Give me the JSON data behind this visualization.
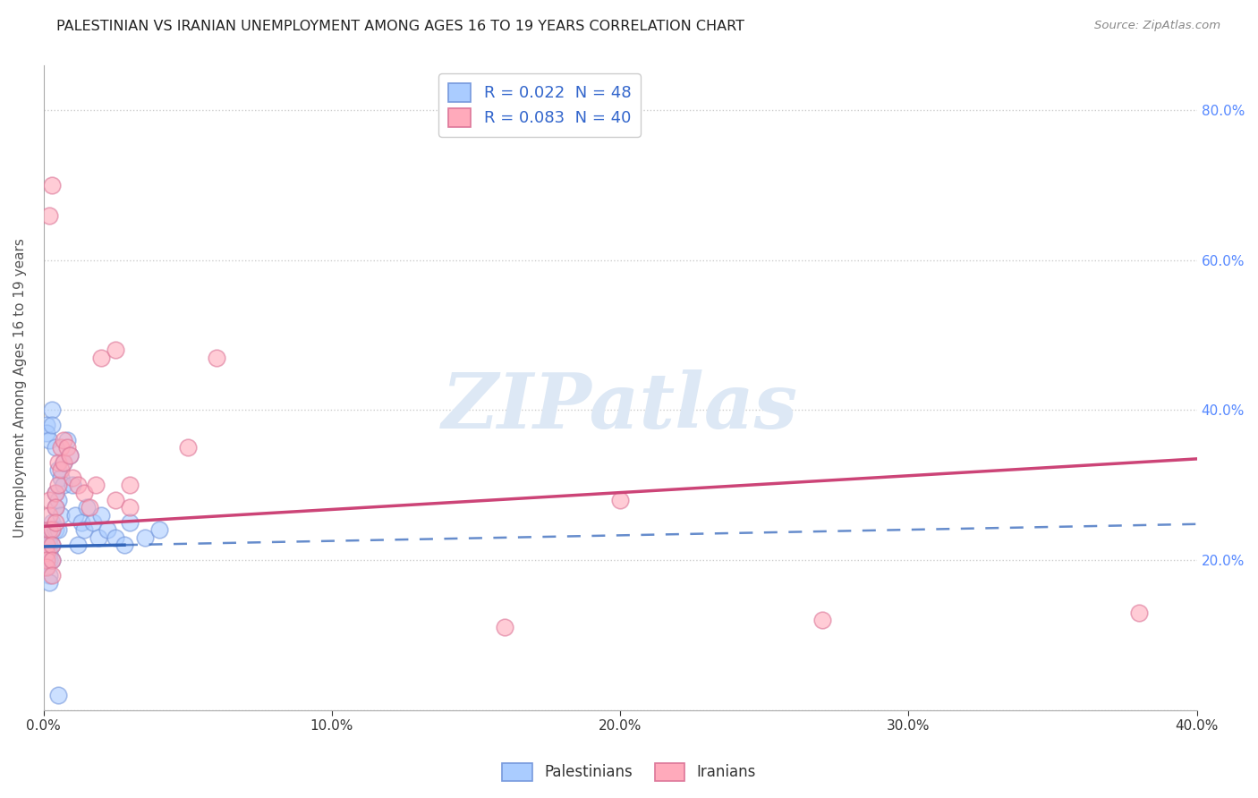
{
  "title": "PALESTINIAN VS IRANIAN UNEMPLOYMENT AMONG AGES 16 TO 19 YEARS CORRELATION CHART",
  "source": "Source: ZipAtlas.com",
  "ylabel": "Unemployment Among Ages 16 to 19 years",
  "xlim": [
    0.0,
    0.4
  ],
  "ylim": [
    0.0,
    0.86
  ],
  "xtick_vals": [
    0.0,
    0.1,
    0.2,
    0.3,
    0.4
  ],
  "xtick_labels": [
    "0.0%",
    "10.0%",
    "20.0%",
    "30.0%",
    "40.0%"
  ],
  "ytick_vals": [
    0.0,
    0.2,
    0.4,
    0.6,
    0.8
  ],
  "ytick_labels_right": [
    "",
    "20.0%",
    "40.0%",
    "60.0%",
    "80.0%"
  ],
  "legend_r1": "R = 0.022  N = 48",
  "legend_r2": "R = 0.083  N = 40",
  "legend_color1": "#aaccff",
  "legend_color2": "#ffaabb",
  "dot_face_palestinians": "#aaccff",
  "dot_edge_palestinians": "#7799dd",
  "dot_face_iranians": "#ffaabb",
  "dot_edge_iranians": "#dd7799",
  "trendline_color_palestinians": "#3366bb",
  "trendline_color_iranians": "#cc4477",
  "background_color": "#ffffff",
  "grid_color": "#cccccc",
  "title_color": "#222222",
  "axis_label_color": "#555555",
  "tick_color_right": "#5588ff",
  "watermark_color": "#dde8f5",
  "palestinians_x": [
    0.001,
    0.001,
    0.001,
    0.001,
    0.002,
    0.002,
    0.002,
    0.002,
    0.002,
    0.003,
    0.003,
    0.003,
    0.003,
    0.004,
    0.004,
    0.004,
    0.005,
    0.005,
    0.005,
    0.006,
    0.006,
    0.007,
    0.007,
    0.008,
    0.009,
    0.01,
    0.011,
    0.012,
    0.013,
    0.014,
    0.015,
    0.017,
    0.019,
    0.02,
    0.022,
    0.025,
    0.028,
    0.03,
    0.035,
    0.04,
    0.001,
    0.001,
    0.002,
    0.003,
    0.003,
    0.004,
    0.002,
    0.005
  ],
  "palestinians_y": [
    0.22,
    0.21,
    0.2,
    0.19,
    0.23,
    0.22,
    0.21,
    0.2,
    0.18,
    0.25,
    0.24,
    0.22,
    0.2,
    0.29,
    0.27,
    0.24,
    0.32,
    0.28,
    0.24,
    0.31,
    0.26,
    0.33,
    0.3,
    0.36,
    0.34,
    0.3,
    0.26,
    0.22,
    0.25,
    0.24,
    0.27,
    0.25,
    0.23,
    0.26,
    0.24,
    0.23,
    0.22,
    0.25,
    0.23,
    0.24,
    0.38,
    0.37,
    0.36,
    0.4,
    0.38,
    0.35,
    0.17,
    0.02
  ],
  "iranians_x": [
    0.001,
    0.001,
    0.001,
    0.001,
    0.002,
    0.002,
    0.002,
    0.003,
    0.003,
    0.003,
    0.003,
    0.004,
    0.004,
    0.004,
    0.005,
    0.005,
    0.006,
    0.006,
    0.007,
    0.007,
    0.008,
    0.009,
    0.01,
    0.012,
    0.014,
    0.016,
    0.018,
    0.02,
    0.025,
    0.03,
    0.002,
    0.003,
    0.16,
    0.27,
    0.38,
    0.2,
    0.025,
    0.03,
    0.05,
    0.06
  ],
  "iranians_y": [
    0.22,
    0.21,
    0.2,
    0.19,
    0.28,
    0.26,
    0.24,
    0.24,
    0.22,
    0.2,
    0.18,
    0.29,
    0.27,
    0.25,
    0.33,
    0.3,
    0.35,
    0.32,
    0.36,
    0.33,
    0.35,
    0.34,
    0.31,
    0.3,
    0.29,
    0.27,
    0.3,
    0.47,
    0.28,
    0.3,
    0.66,
    0.7,
    0.11,
    0.12,
    0.13,
    0.28,
    0.48,
    0.27,
    0.35,
    0.47
  ],
  "trendline_pal_x0": 0.0,
  "trendline_pal_y0": 0.218,
  "trendline_pal_x1": 0.4,
  "trendline_pal_y1": 0.248,
  "trendline_pal_solid_end": 0.028,
  "trendline_iran_x0": 0.0,
  "trendline_iran_y0": 0.245,
  "trendline_iran_x1": 0.4,
  "trendline_iran_y1": 0.335
}
